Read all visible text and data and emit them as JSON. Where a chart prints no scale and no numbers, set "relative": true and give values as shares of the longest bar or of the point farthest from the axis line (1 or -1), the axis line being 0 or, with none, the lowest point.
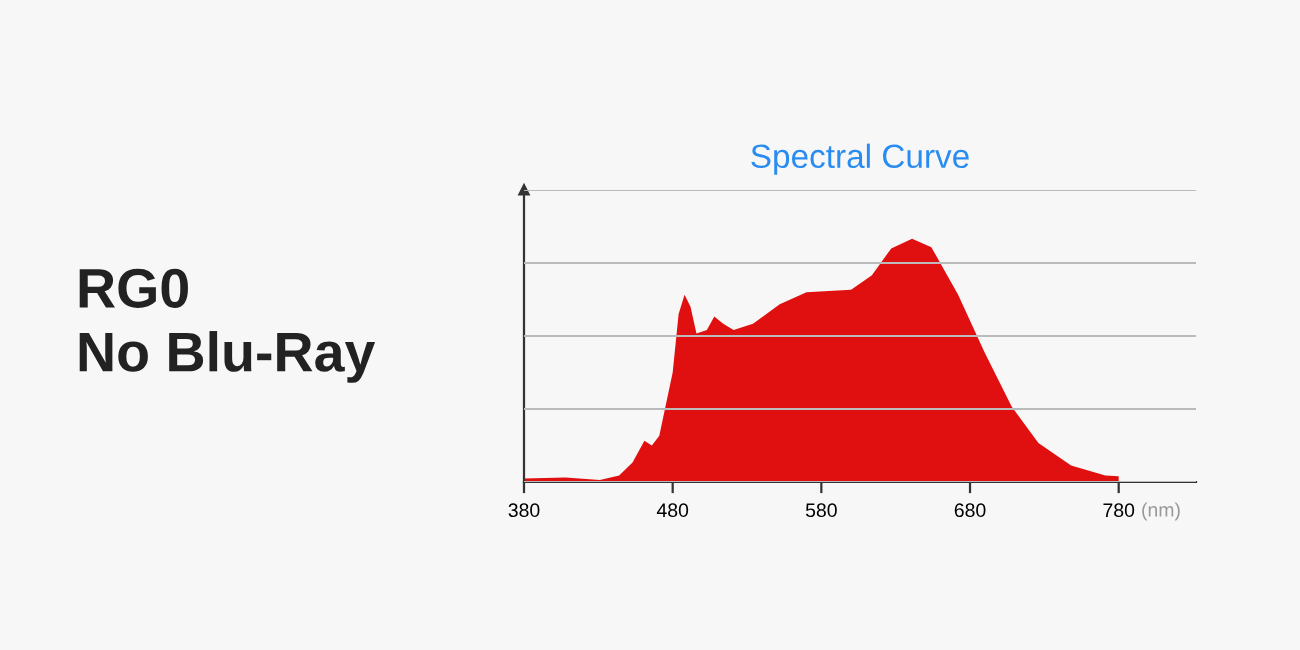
{
  "chart_data": {
    "type": "area",
    "title": "Spectral Curve",
    "xlabel": "(nm)",
    "relative": true,
    "grid": "y",
    "tick_labels": "x",
    "annotations": [
      "RG0\nNo Blu-Ray"
    ],
    "xlim": [
      380,
      832
    ],
    "xticks": [
      380,
      480,
      580,
      680,
      780
    ],
    "x": [
      380,
      408,
      431,
      444,
      453,
      461,
      466,
      471,
      480,
      484,
      488,
      492,
      496,
      503,
      508,
      514,
      521,
      534,
      552,
      570,
      600,
      614,
      627,
      641,
      654,
      672,
      690,
      708,
      726,
      748,
      771,
      780
    ],
    "series": [
      {
        "color": "#e01010",
        "values": [
          0.014,
          0.019,
          0.008,
          0.027,
          0.08,
          0.17,
          0.15,
          0.19,
          0.45,
          0.69,
          0.77,
          0.72,
          0.61,
          0.625,
          0.68,
          0.65,
          0.625,
          0.65,
          0.73,
          0.78,
          0.79,
          0.85,
          0.96,
          1.0,
          0.965,
          0.77,
          0.53,
          0.31,
          0.16,
          0.068,
          0.027,
          0.024
        ]
      }
    ]
  }
}
